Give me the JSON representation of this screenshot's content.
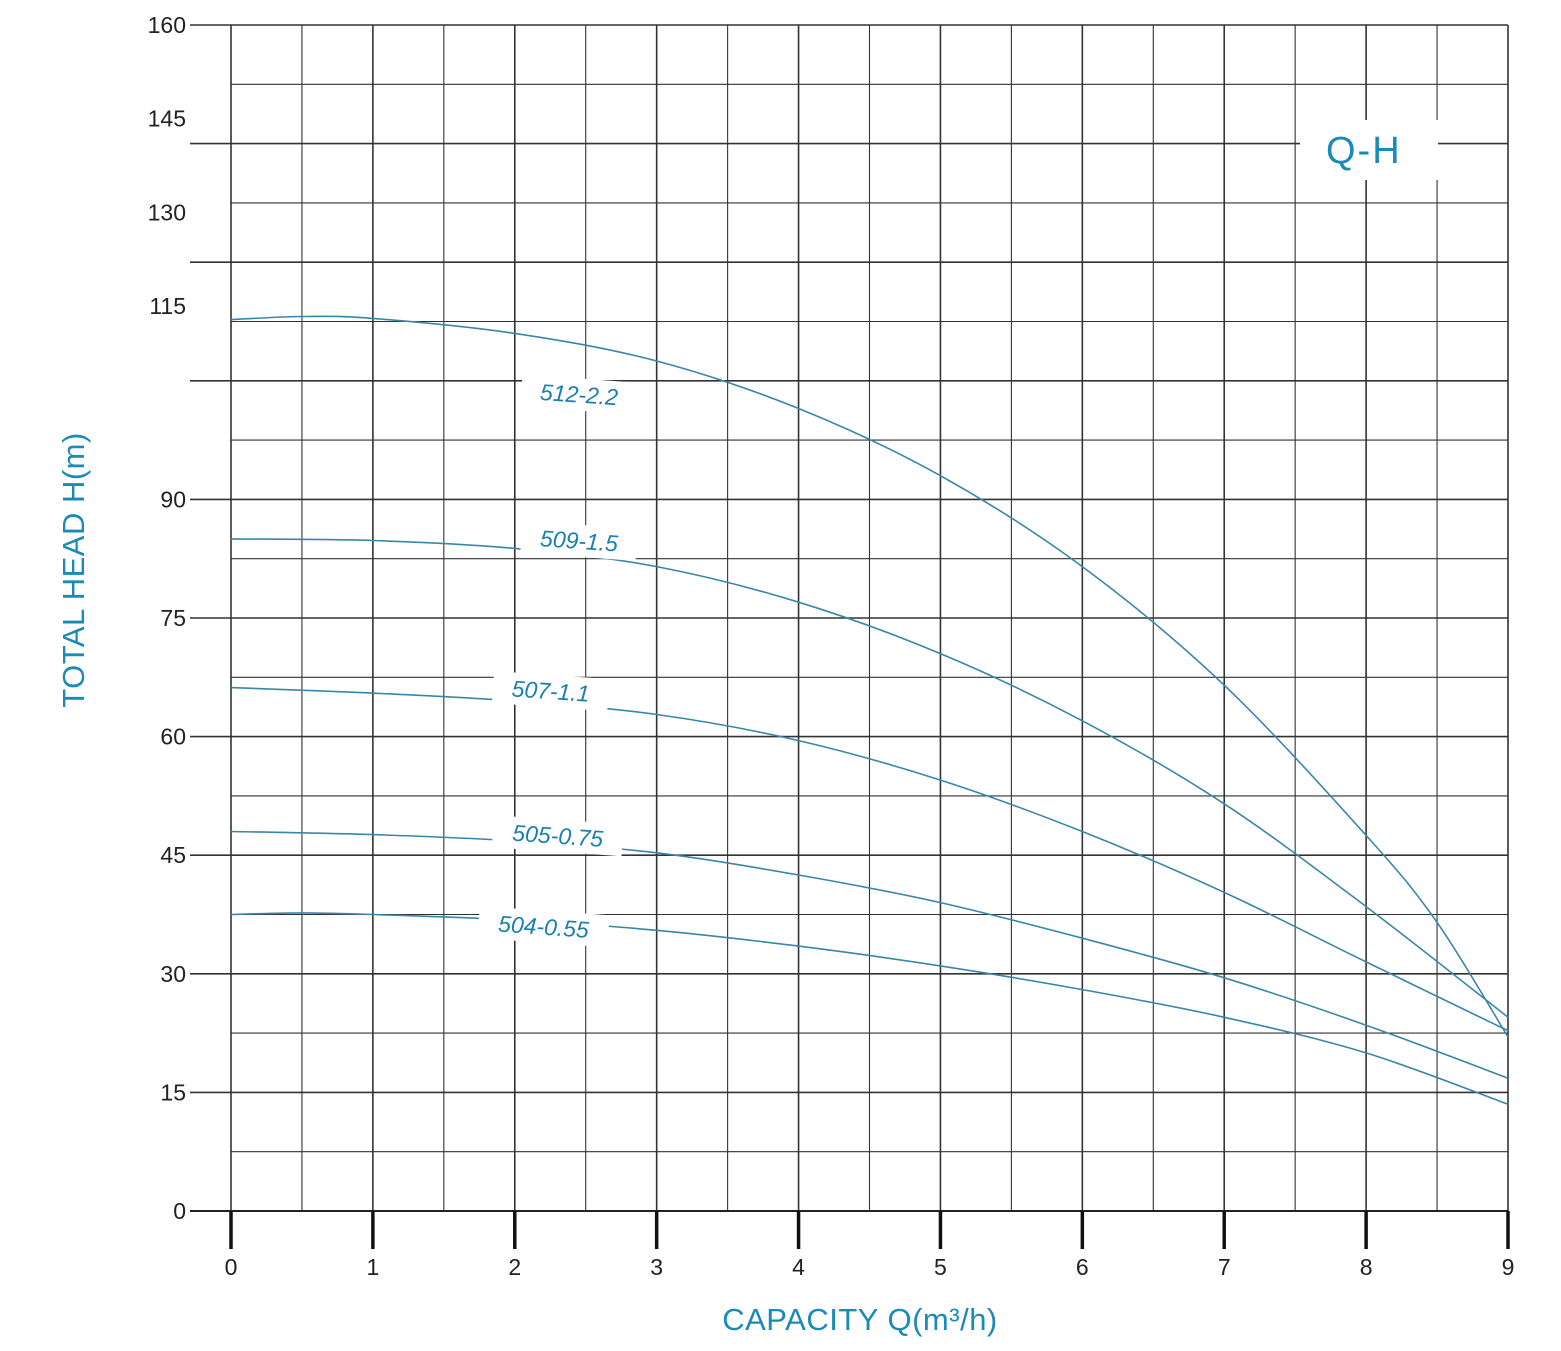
{
  "chart_data": {
    "type": "line",
    "title": "Q-H",
    "xlabel": "CAPACITY Q(m³/h)",
    "ylabel": "TOTAL HEAD H(m)",
    "xlim": [
      0,
      9
    ],
    "ylim": [
      0,
      160
    ],
    "x_ticks": [
      "0",
      "1",
      "2",
      "3",
      "4",
      "5",
      "6",
      "7",
      "8",
      "9"
    ],
    "y_ticks": [
      "0",
      "15",
      "30",
      "45",
      "60",
      "75",
      "90",
      "115",
      "130",
      "145",
      "160"
    ],
    "grid": true,
    "legend": "inline-labels",
    "colors": {
      "curve": "#3a86a8",
      "text": "#1a8ab8",
      "grid": "#333333"
    },
    "series": [
      {
        "name": "512-2.2",
        "x": [
          0,
          0.5,
          1,
          2,
          3,
          4,
          5,
          6,
          7,
          8,
          8.5,
          9
        ],
        "y": [
          112.8,
          113.3,
          113.0,
          111.0,
          107.5,
          101.5,
          93.0,
          81.5,
          66.5,
          47.5,
          36.5,
          22.0
        ]
      },
      {
        "name": "509-1.5",
        "x": [
          0,
          1,
          2,
          3,
          4,
          5,
          6,
          7,
          8,
          9
        ],
        "y": [
          85.0,
          84.8,
          83.8,
          81.5,
          77.0,
          70.5,
          62.0,
          51.5,
          38.5,
          24.5
        ]
      },
      {
        "name": "507-1.1",
        "x": [
          0,
          1,
          2,
          3,
          4,
          5,
          6,
          7,
          8,
          9
        ],
        "y": [
          66.2,
          65.5,
          64.5,
          62.8,
          59.5,
          54.5,
          48.0,
          40.3,
          31.5,
          22.8
        ]
      },
      {
        "name": "505-0.75",
        "x": [
          0,
          1,
          2,
          3,
          4,
          5,
          6,
          7,
          8,
          9
        ],
        "y": [
          48.0,
          47.6,
          46.8,
          45.3,
          42.5,
          39.0,
          34.5,
          29.5,
          23.5,
          16.8
        ]
      },
      {
        "name": "504-0.55",
        "x": [
          0,
          0.5,
          1,
          2,
          3,
          4,
          5,
          6,
          7,
          8,
          9
        ],
        "y": [
          37.5,
          37.7,
          37.5,
          36.8,
          35.5,
          33.5,
          31.0,
          28.0,
          24.5,
          20.0,
          13.5
        ]
      }
    ],
    "curve_labels": [
      {
        "text": "512-2.2",
        "x": 2.45,
        "y": 102.5
      },
      {
        "text": "509-1.5",
        "x": 2.45,
        "y": 84.0
      },
      {
        "text": "507-1.1",
        "x": 2.25,
        "y": 65.0
      },
      {
        "text": "505-0.75",
        "x": 2.3,
        "y": 46.7
      },
      {
        "text": "504-0.55",
        "x": 2.2,
        "y": 35.2
      }
    ]
  }
}
